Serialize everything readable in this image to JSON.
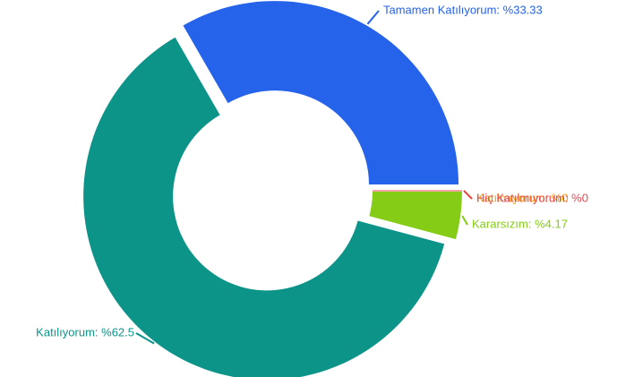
{
  "chart_data": {
    "type": "pie",
    "categories": [
      "Tamamen Katılıyorum: %33.33",
      "Katılmıyorum: %0",
      "Hiç Katılmıyorum: %0",
      "Kararsızım: %4.17",
      "Katılıyorum: %62.5"
    ],
    "values": [
      33.33,
      0,
      0,
      4.17,
      62.5
    ],
    "colors": [
      "#2563eb",
      "#f59e0b",
      "#e5484d",
      "#84cc16",
      "#0d9488"
    ],
    "donut": true
  }
}
